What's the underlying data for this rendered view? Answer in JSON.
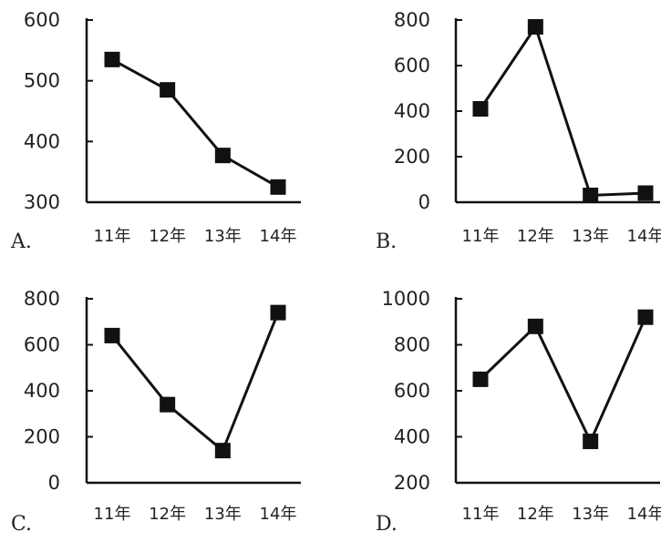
{
  "chart_data": [
    {
      "type": "line",
      "panel_label": "A.",
      "categories": [
        "11年",
        "12年",
        "13年",
        "14年"
      ],
      "values": [
        535,
        485,
        377,
        325
      ],
      "yticks": [
        300,
        400,
        500,
        600
      ],
      "ylim": [
        300,
        600
      ],
      "grid": false
    },
    {
      "type": "line",
      "panel_label": "B.",
      "categories": [
        "11年",
        "12年",
        "13年",
        "14年"
      ],
      "values": [
        410,
        770,
        30,
        40
      ],
      "yticks": [
        0,
        200,
        400,
        600,
        800
      ],
      "ylim": [
        0,
        800
      ],
      "grid": false
    },
    {
      "type": "line",
      "panel_label": "C.",
      "categories": [
        "11年",
        "12年",
        "13年",
        "14年"
      ],
      "values": [
        640,
        340,
        140,
        740
      ],
      "yticks": [
        0,
        200,
        400,
        600,
        800
      ],
      "ylim": [
        0,
        800
      ],
      "grid": false
    },
    {
      "type": "line",
      "panel_label": "D.",
      "categories": [
        "11年",
        "12年",
        "13年",
        "14年"
      ],
      "values": [
        650,
        880,
        380,
        920
      ],
      "yticks": [
        200,
        400,
        600,
        800,
        1000
      ],
      "ylim": [
        200,
        1000
      ],
      "grid": false
    }
  ]
}
